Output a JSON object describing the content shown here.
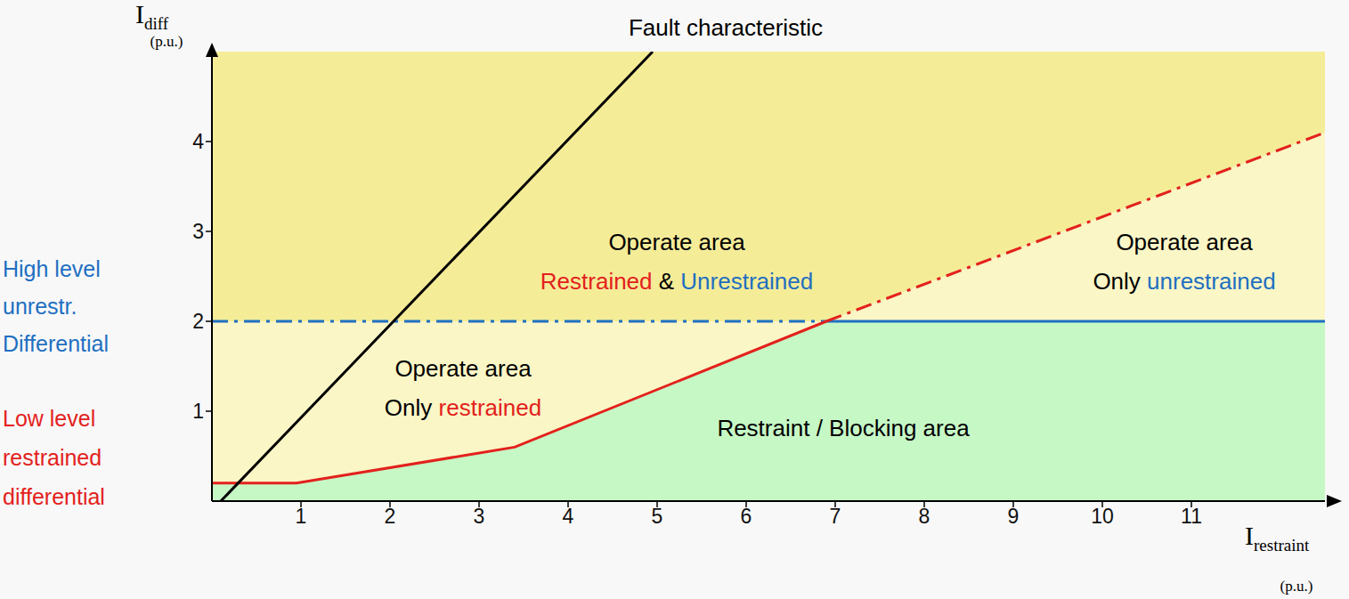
{
  "chart_data": {
    "type": "line",
    "xlabel": {
      "symbol": "I",
      "subscript": "restraint",
      "unit": "(p.u.)"
    },
    "ylabel": {
      "symbol": "I",
      "subscript": "diff",
      "unit": "(p.u.)"
    },
    "xlim": [
      0,
      12.5
    ],
    "xticks": [
      1,
      2,
      3,
      4,
      5,
      6,
      7,
      8,
      9,
      10,
      11
    ],
    "ylim": [
      0,
      5
    ],
    "yticks": [
      1,
      2,
      3,
      4
    ],
    "grid": false,
    "series": [
      {
        "name": "Fault characteristic",
        "color": "#000000",
        "x": [
          0.1,
          4.95
        ],
        "values": [
          0,
          5
        ]
      },
      {
        "name": "Low level restrained differential",
        "color": "#e3211c",
        "x": [
          0,
          0.95,
          3.4,
          6.9,
          12.5
        ],
        "values": [
          0.2,
          0.2,
          0.6,
          2,
          4.1
        ]
      },
      {
        "name": "High level unrestr. Differential",
        "color": "#1f6fc1",
        "x": [
          0,
          12.5
        ],
        "values": [
          2,
          2
        ]
      }
    ],
    "annotations": [
      {
        "lines": [
          [
            {
              "text": "Operate area"
            }
          ],
          [
            {
              "text": "Restrained",
              "color": "#e3211c"
            },
            {
              "text": "&"
            },
            {
              "text": "Unrestrained",
              "color": "#1f6fc1"
            }
          ]
        ]
      },
      {
        "lines": [
          [
            {
              "text": "Operate area"
            }
          ],
          [
            {
              "text": "Only"
            },
            {
              "text": "unrestrained",
              "color": "#1f6fc1"
            }
          ]
        ]
      },
      {
        "lines": [
          [
            {
              "text": "Operate area"
            }
          ],
          [
            {
              "text": "Only"
            },
            {
              "text": "restrained",
              "color": "#e3211c"
            }
          ]
        ]
      },
      {
        "lines": [
          [
            {
              "text": "Restraint / Blocking area"
            }
          ]
        ]
      }
    ]
  }
}
